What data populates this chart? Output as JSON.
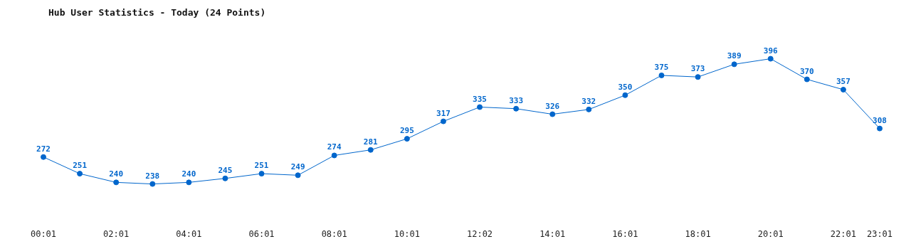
{
  "chart_data": {
    "type": "line",
    "title": "Hub User Statistics - Today (24 Points)",
    "categories": [
      "00:01",
      null,
      "02:01",
      null,
      "04:01",
      null,
      "06:01",
      null,
      "08:01",
      null,
      "10:01",
      null,
      "12:02",
      null,
      "14:01",
      null,
      "16:01",
      null,
      "18:01",
      null,
      "20:01",
      null,
      "22:01",
      "23:01"
    ],
    "series": [
      {
        "color": "#0066cc",
        "values": [
          272,
          251,
          240,
          238,
          240,
          245,
          251,
          249,
          274,
          281,
          295,
          317,
          335,
          333,
          326,
          332,
          350,
          375,
          373,
          389,
          396,
          370,
          357,
          308
        ]
      }
    ],
    "data_labels": true,
    "marker": "circle",
    "grid": false,
    "legend": false
  }
}
